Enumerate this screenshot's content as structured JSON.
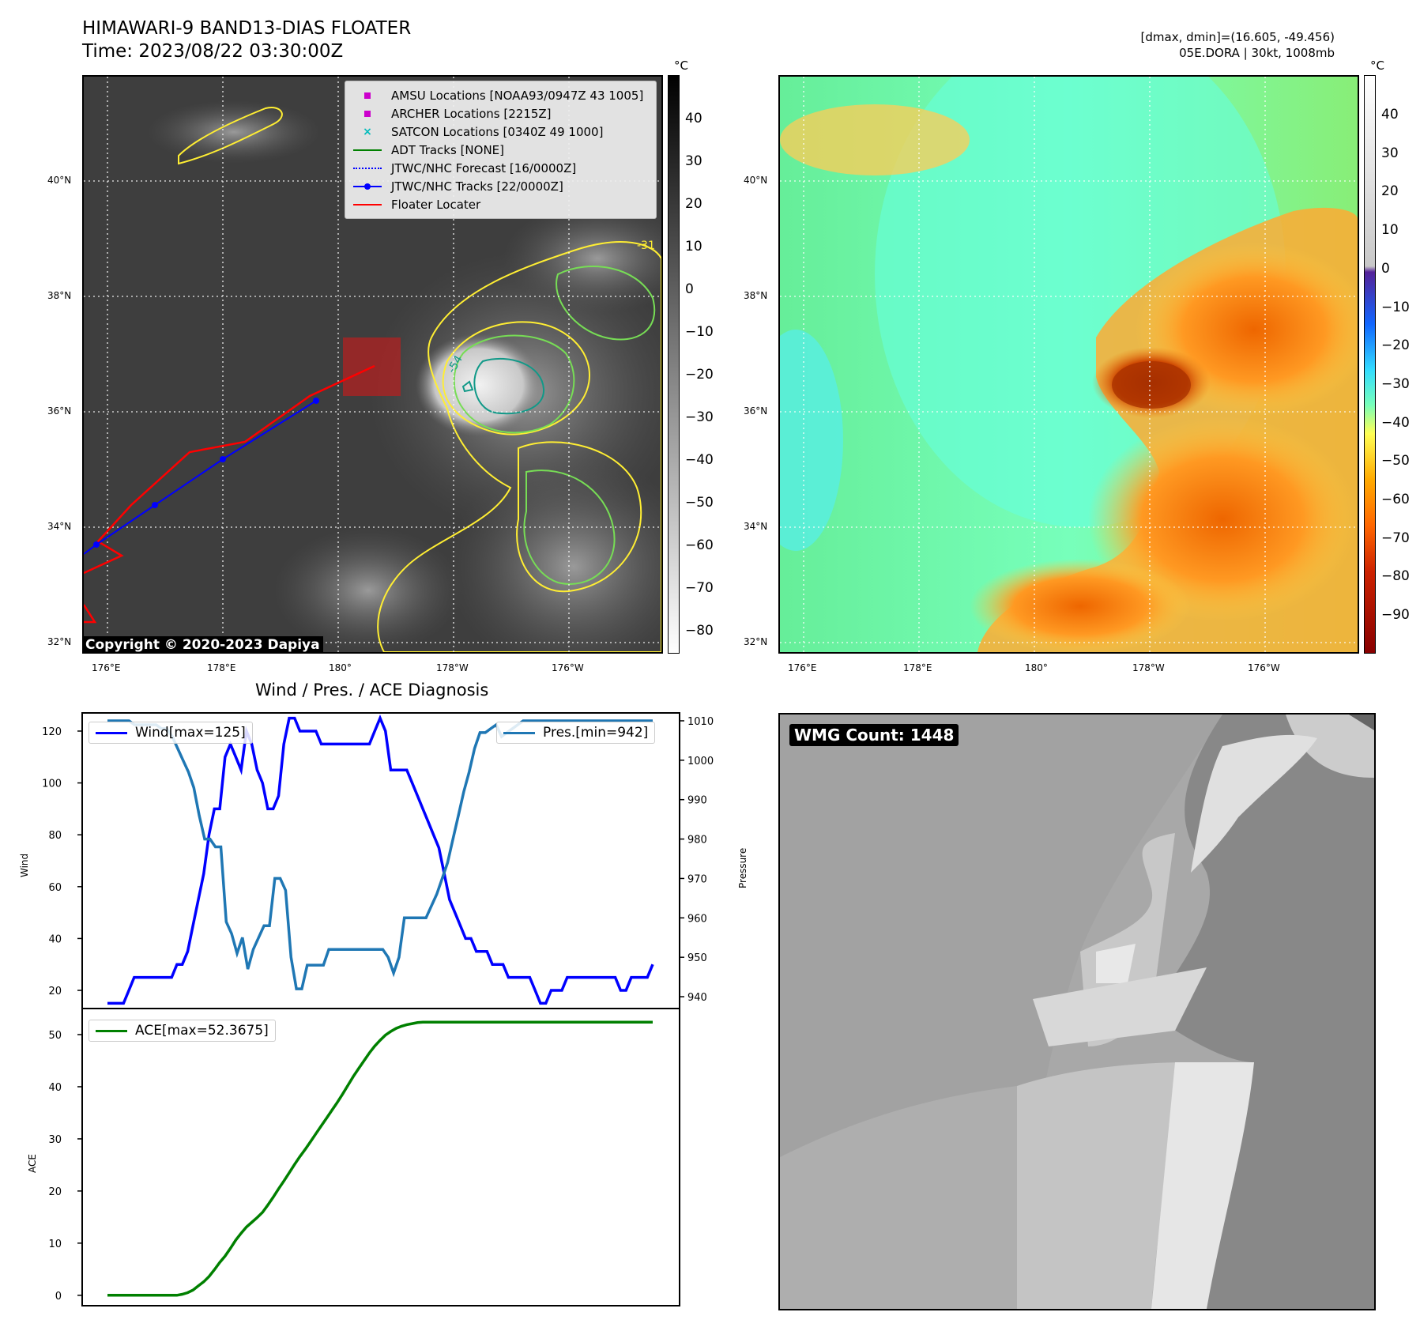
{
  "header": {
    "title_line1": "HIMAWARI-9 BAND13-DIAS FLOATER",
    "title_line2": "Time: 2023/08/22 03:30:00Z",
    "info_line1": "[dmax, dmin]=(16.605, -49.456)",
    "info_line2": "05E.DORA | 30kt, 1008mb"
  },
  "colorbar_unit": "°C",
  "gray_colorbar_ticks": [
    "40",
    "30",
    "20",
    "10",
    "0",
    "−10",
    "−20",
    "−30",
    "−40",
    "−50",
    "−60",
    "−70",
    "−80"
  ],
  "color_colorbar_ticks": [
    "40",
    "30",
    "20",
    "10",
    "0",
    "−10",
    "−20",
    "−30",
    "−40",
    "−50",
    "−60",
    "−70",
    "−80",
    "−90"
  ],
  "lat_labels": [
    "40°N",
    "38°N",
    "36°N",
    "34°N",
    "32°N"
  ],
  "lon_labels": [
    "176°E",
    "178°E",
    "180°",
    "178°W",
    "176°W"
  ],
  "legend": [
    {
      "label": "AMSU Locations [NOAA93/0947Z 43 1005]",
      "symbol": "square",
      "color": "#cc00cc"
    },
    {
      "label": "ARCHER Locations [2215Z]",
      "symbol": "square",
      "color": "#cc00cc"
    },
    {
      "label": "SATCON Locations [0340Z 49 1000]",
      "symbol": "x",
      "color": "#00bbbb"
    },
    {
      "label": "ADT Tracks [NONE]",
      "symbol": "line",
      "color": "#008000"
    },
    {
      "label": "JTWC/NHC Forecast [16/0000Z]",
      "symbol": "dotted",
      "color": "#0000ff"
    },
    {
      "label": "JTWC/NHC Tracks [22/0000Z]",
      "symbol": "line-dot",
      "color": "#0000ff"
    },
    {
      "label": "Floater Locater",
      "symbol": "line",
      "color": "#ff0000"
    }
  ],
  "contour_labels": [
    "-31",
    "-54"
  ],
  "copyright": "Copyright © 2020-2023 Dapiya",
  "wmg_label": "WMG Count: 1448",
  "diag_title": "Wind / Pres. / ACE Diagnosis",
  "colors": {
    "wind": "#0000ff",
    "pressure": "#1f77b4",
    "ace": "#008000",
    "floater": "#ff0000",
    "tracks": "#0000ff",
    "floater_box": "#b22222"
  },
  "chart_data": [
    {
      "type": "line",
      "title": "Wind / Pres. / ACE Diagnosis",
      "ylabel": "Wind",
      "y2label": "Pressure",
      "ylim": [
        13,
        127
      ],
      "y2lim": [
        937,
        1012
      ],
      "yticks": [
        20,
        40,
        60,
        80,
        100,
        120
      ],
      "y2ticks": [
        940,
        950,
        960,
        970,
        980,
        990,
        1000,
        1010
      ],
      "series": [
        {
          "name": "Wind[max=125]",
          "axis": "left",
          "values": [
            15,
            15,
            15,
            15,
            20,
            25,
            25,
            25,
            25,
            25,
            25,
            25,
            25,
            30,
            30,
            35,
            45,
            55,
            65,
            80,
            90,
            90,
            110,
            115,
            110,
            105,
            120,
            115,
            105,
            100,
            90,
            90,
            95,
            115,
            125,
            125,
            120,
            120,
            120,
            120,
            115,
            115,
            115,
            115,
            115,
            115,
            115,
            115,
            115,
            115,
            120,
            125,
            120,
            105,
            105,
            105,
            105,
            100,
            95,
            90,
            85,
            80,
            75,
            65,
            55,
            50,
            45,
            40,
            40,
            35,
            35,
            35,
            30,
            30,
            30,
            25,
            25,
            25,
            25,
            25,
            20,
            15,
            15,
            20,
            20,
            20,
            25,
            25,
            25,
            25,
            25,
            25,
            25,
            25,
            25,
            25,
            20,
            20,
            25,
            25,
            25,
            25,
            30
          ]
        },
        {
          "name": "Pres.[min=942]",
          "axis": "right",
          "values": [
            1010,
            1010,
            1010,
            1010,
            1010,
            1009,
            1009,
            1009,
            1009,
            1009,
            1008,
            1008,
            1006,
            1003,
            1000,
            997,
            993,
            986,
            980,
            980,
            978,
            978,
            959,
            956,
            951,
            955,
            947,
            952,
            955,
            958,
            958,
            970,
            970,
            967,
            950,
            942,
            942,
            948,
            948,
            948,
            948,
            952,
            952,
            952,
            952,
            952,
            952,
            952,
            952,
            952,
            952,
            952,
            950,
            946,
            950,
            960,
            960,
            960,
            960,
            960,
            963,
            966,
            970,
            974,
            980,
            986,
            992,
            997,
            1003,
            1007,
            1007,
            1008,
            1009,
            1006,
            1007,
            1008,
            1009,
            1010,
            1010,
            1010,
            1010,
            1010,
            1010,
            1010,
            1010,
            1010,
            1010,
            1010,
            1010,
            1010,
            1010,
            1010,
            1010,
            1010,
            1010,
            1010,
            1010,
            1010,
            1010,
            1010,
            1010,
            1010
          ]
        }
      ]
    },
    {
      "type": "line",
      "ylabel": "ACE",
      "ylim": [
        -2,
        55
      ],
      "yticks": [
        0,
        10,
        20,
        30,
        40,
        50
      ],
      "series": [
        {
          "name": "ACE[max=52.3675]",
          "values": [
            0,
            0,
            0,
            0,
            0,
            0,
            0,
            0,
            0,
            0,
            0,
            0,
            0,
            0,
            0.2,
            0.5,
            1,
            1.8,
            2.6,
            3.6,
            4.9,
            6.3,
            7.5,
            9.0,
            10.6,
            11.9,
            13.1,
            14.0,
            14.9,
            15.9,
            17.3,
            18.8,
            20.4,
            21.9,
            23.5,
            25.1,
            26.6,
            28.0,
            29.5,
            31.0,
            32.5,
            34.0,
            35.5,
            37.0,
            38.6,
            40.3,
            42.0,
            43.5,
            45.0,
            46.5,
            47.8,
            48.9,
            49.9,
            50.6,
            51.2,
            51.6,
            51.9,
            52.1,
            52.3,
            52.37,
            52.37,
            52.37,
            52.37,
            52.37,
            52.37,
            52.37,
            52.37,
            52.37,
            52.37,
            52.37,
            52.37,
            52.37,
            52.37,
            52.37,
            52.37,
            52.37,
            52.37,
            52.37,
            52.37,
            52.37,
            52.37,
            52.37,
            52.37,
            52.37,
            52.37,
            52.37,
            52.37,
            52.37,
            52.37,
            52.37,
            52.37,
            52.37,
            52.37,
            52.37,
            52.37,
            52.37,
            52.37,
            52.37,
            52.37,
            52.37,
            52.37,
            52.37,
            52.37
          ]
        }
      ]
    }
  ]
}
